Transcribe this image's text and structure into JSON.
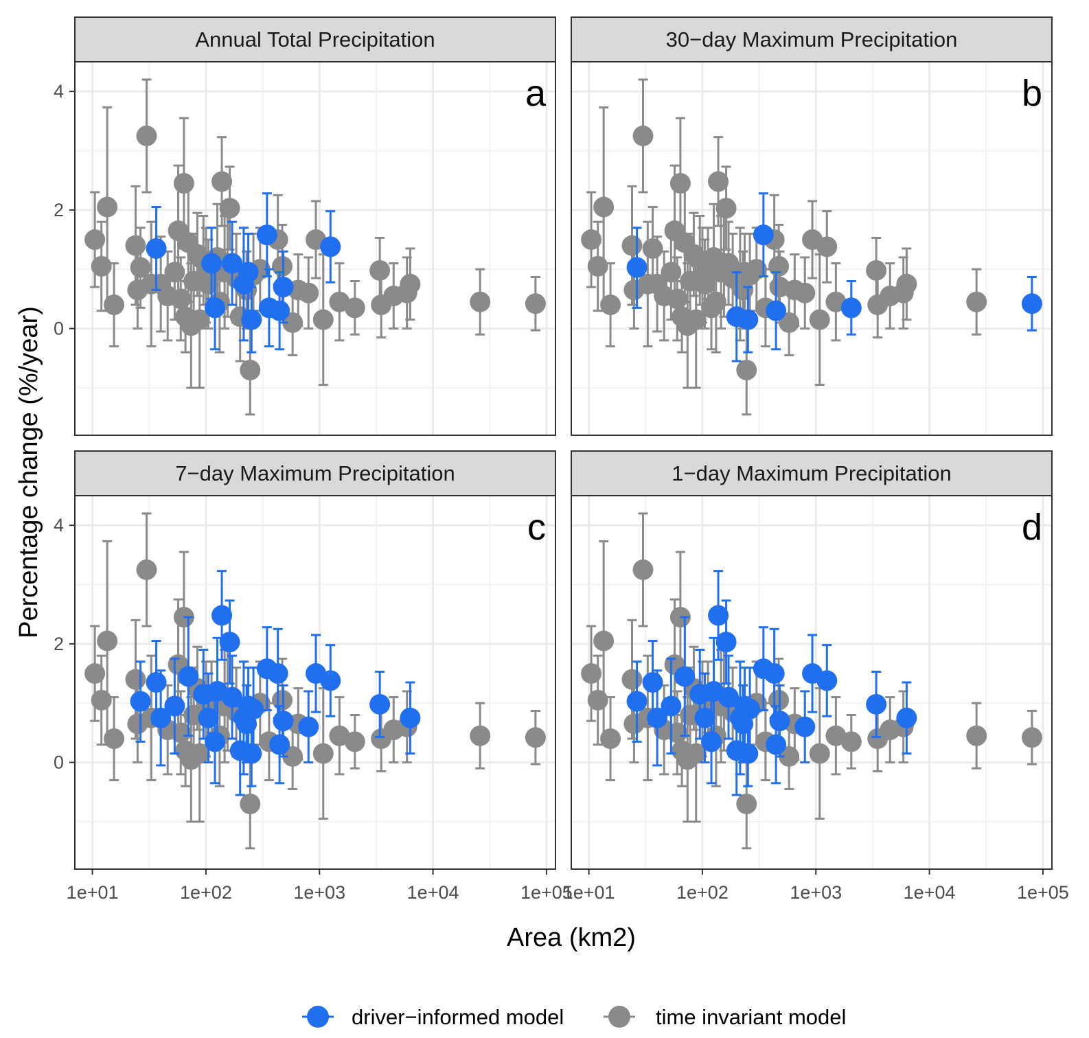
{
  "chart_data": {
    "type": "scatter",
    "xlabel": "Area (km2)",
    "ylabel": "Percentage change (%/year)",
    "x_scale": "log10",
    "xlim": [
      7,
      120000
    ],
    "ylim": [
      -1.8,
      4.5
    ],
    "x_ticks": [
      {
        "value": 10,
        "label": "1e+01"
      },
      {
        "value": 100,
        "label": "1e+02"
      },
      {
        "value": 1000,
        "label": "1e+03"
      },
      {
        "value": 10000,
        "label": "1e+04"
      },
      {
        "value": 100000,
        "label": "1e+05"
      }
    ],
    "y_ticks": [
      {
        "value": 0,
        "label": "0"
      },
      {
        "value": 2,
        "label": "2"
      },
      {
        "value": 4,
        "label": "4"
      }
    ],
    "grid": true,
    "legend_position": "bottom",
    "series_colors": {
      "driver": "#1f6fef",
      "invariant": "#8a8a8a"
    },
    "legend": [
      {
        "key": "driver",
        "label": "driver−informed model"
      },
      {
        "key": "invariant",
        "label": "time invariant model"
      }
    ],
    "stations": [
      {
        "id": 1,
        "area": 10.5,
        "est": 1.5,
        "lo": 0.7,
        "hi": 2.3
      },
      {
        "id": 2,
        "area": 12,
        "est": 1.05,
        "lo": 0.3,
        "hi": 1.8
      },
      {
        "id": 3,
        "area": 13.5,
        "est": 2.05,
        "lo": 0.3,
        "hi": 3.73
      },
      {
        "id": 4,
        "area": 15.5,
        "est": 0.4,
        "lo": -0.3,
        "hi": 1.1
      },
      {
        "id": 5,
        "area": 24,
        "est": 1.4,
        "lo": 0.4,
        "hi": 2.4
      },
      {
        "id": 6,
        "area": 25,
        "est": 0.65,
        "lo": 0.0,
        "hi": 1.3
      },
      {
        "id": 7,
        "area": 26.5,
        "est": 1.03,
        "lo": 0.35,
        "hi": 1.7
      },
      {
        "id": 8,
        "area": 30,
        "est": 3.25,
        "lo": 2.3,
        "hi": 4.2
      },
      {
        "id": 9,
        "area": 33,
        "est": 0.75,
        "lo": -0.3,
        "hi": 1.8
      },
      {
        "id": 10,
        "area": 36.5,
        "est": 1.35,
        "lo": 0.65,
        "hi": 2.05
      },
      {
        "id": 11,
        "area": 40,
        "est": 0.75,
        "lo": -0.05,
        "hi": 1.55
      },
      {
        "id": 12,
        "area": 46,
        "est": 0.55,
        "lo": -0.2,
        "hi": 1.3
      },
      {
        "id": 13,
        "area": 53,
        "est": 0.95,
        "lo": 0.15,
        "hi": 1.75
      },
      {
        "id": 14,
        "area": 57,
        "est": 1.65,
        "lo": 0.55,
        "hi": 2.75
      },
      {
        "id": 15,
        "area": 60,
        "est": 0.5,
        "lo": -0.2,
        "hi": 1.2
      },
      {
        "id": 16,
        "area": 64,
        "est": 2.45,
        "lo": 1.35,
        "hi": 3.55
      },
      {
        "id": 17,
        "area": 66,
        "est": 0.2,
        "lo": -0.4,
        "hi": 0.8
      },
      {
        "id": 18,
        "area": 70,
        "est": 1.45,
        "lo": 0.45,
        "hi": 2.45
      },
      {
        "id": 19,
        "area": 74,
        "est": 0.05,
        "lo": -1.0,
        "hi": 1.1
      },
      {
        "id": 20,
        "area": 78,
        "est": 0.8,
        "lo": 0.0,
        "hi": 1.6
      },
      {
        "id": 21,
        "area": 84,
        "est": 1.25,
        "lo": 0.55,
        "hi": 1.95
      },
      {
        "id": 22,
        "area": 88,
        "est": 0.15,
        "lo": -1.0,
        "hi": 1.3
      },
      {
        "id": 23,
        "area": 95,
        "est": 1.15,
        "lo": 0.4,
        "hi": 1.9
      },
      {
        "id": 24,
        "area": 100,
        "est": 0.9,
        "lo": 0.1,
        "hi": 1.7
      },
      {
        "id": 25,
        "area": 105,
        "est": 0.75,
        "lo": 0.0,
        "hi": 1.5
      },
      {
        "id": 26,
        "area": 112,
        "est": 1.1,
        "lo": 0.5,
        "hi": 1.7
      },
      {
        "id": 27,
        "area": 120,
        "est": 0.35,
        "lo": -0.35,
        "hi": 1.05
      },
      {
        "id": 28,
        "area": 126,
        "est": 1.2,
        "lo": 0.3,
        "hi": 2.1
      },
      {
        "id": 29,
        "area": 132,
        "est": 0.45,
        "lo": -0.4,
        "hi": 1.3
      },
      {
        "id": 30,
        "area": 138,
        "est": 2.48,
        "lo": 1.73,
        "hi": 3.23
      },
      {
        "id": 31,
        "area": 146,
        "est": 0.95,
        "lo": 0.0,
        "hi": 1.9
      },
      {
        "id": 32,
        "area": 155,
        "est": 1.05,
        "lo": 0.2,
        "hi": 1.9
      },
      {
        "id": 33,
        "area": 162,
        "est": 2.03,
        "lo": 1.33,
        "hi": 2.73
      },
      {
        "id": 34,
        "area": 170,
        "est": 1.1,
        "lo": 0.4,
        "hi": 1.8
      },
      {
        "id": 35,
        "area": 185,
        "est": 0.85,
        "lo": 0.1,
        "hi": 1.6
      },
      {
        "id": 36,
        "area": 200,
        "est": 0.2,
        "lo": -0.55,
        "hi": 0.95
      },
      {
        "id": 37,
        "area": 215,
        "est": 0.75,
        "lo": -0.2,
        "hi": 1.7
      },
      {
        "id": 38,
        "area": 228,
        "est": 0.65,
        "lo": 0.0,
        "hi": 1.3
      },
      {
        "id": 39,
        "area": 236,
        "est": 0.95,
        "lo": 0.3,
        "hi": 1.6
      },
      {
        "id": 40,
        "area": 245,
        "est": -0.7,
        "lo": -1.45,
        "hi": 0.05
      },
      {
        "id": 41,
        "area": 252,
        "est": 0.15,
        "lo": -0.4,
        "hi": 0.7
      },
      {
        "id": 42,
        "area": 262,
        "est": 0.9,
        "lo": 0.2,
        "hi": 1.6
      },
      {
        "id": 43,
        "area": 300,
        "est": 1.0,
        "lo": 0.3,
        "hi": 1.7
      },
      {
        "id": 44,
        "area": 345,
        "est": 1.58,
        "lo": 0.88,
        "hi": 2.28
      },
      {
        "id": 45,
        "area": 360,
        "est": 0.35,
        "lo": -0.3,
        "hi": 1.0
      },
      {
        "id": 46,
        "area": 430,
        "est": 1.5,
        "lo": 0.75,
        "hi": 2.25
      },
      {
        "id": 47,
        "area": 445,
        "est": 0.3,
        "lo": -0.35,
        "hi": 0.95
      },
      {
        "id": 48,
        "area": 470,
        "est": 1.05,
        "lo": 0.35,
        "hi": 1.75
      },
      {
        "id": 49,
        "area": 480,
        "est": 0.7,
        "lo": 0.1,
        "hi": 1.3
      },
      {
        "id": 50,
        "area": 580,
        "est": 0.1,
        "lo": -0.45,
        "hi": 0.65
      },
      {
        "id": 51,
        "area": 650,
        "est": 0.65,
        "lo": 0.05,
        "hi": 1.25
      },
      {
        "id": 52,
        "area": 800,
        "est": 0.6,
        "lo": 0.0,
        "hi": 1.2
      },
      {
        "id": 53,
        "area": 930,
        "est": 1.5,
        "lo": 0.85,
        "hi": 2.15
      },
      {
        "id": 54,
        "area": 1080,
        "est": 0.15,
        "lo": -0.95,
        "hi": 1.25
      },
      {
        "id": 55,
        "area": 1250,
        "est": 1.38,
        "lo": 0.78,
        "hi": 1.98
      },
      {
        "id": 56,
        "area": 1500,
        "est": 0.45,
        "lo": -0.2,
        "hi": 1.1
      },
      {
        "id": 57,
        "area": 2050,
        "est": 0.35,
        "lo": -0.1,
        "hi": 0.8
      },
      {
        "id": 58,
        "area": 3400,
        "est": 0.98,
        "lo": 0.43,
        "hi": 1.53
      },
      {
        "id": 59,
        "area": 3500,
        "est": 0.4,
        "lo": -0.15,
        "hi": 0.95
      },
      {
        "id": 60,
        "area": 4500,
        "est": 0.55,
        "lo": 0.0,
        "hi": 1.1
      },
      {
        "id": 61,
        "area": 5900,
        "est": 0.6,
        "lo": 0.0,
        "hi": 1.2
      },
      {
        "id": 62,
        "area": 6300,
        "est": 0.75,
        "lo": 0.15,
        "hi": 1.35
      },
      {
        "id": 63,
        "area": 26000,
        "est": 0.45,
        "lo": -0.1,
        "hi": 1.0
      },
      {
        "id": 64,
        "area": 80000,
        "est": 0.42,
        "lo": -0.03,
        "hi": 0.87
      }
    ],
    "panels": [
      {
        "title": "Annual Total Precipitation",
        "label": "a",
        "driver_ids": [
          10,
          26,
          27,
          34,
          37,
          39,
          41,
          44,
          45,
          47,
          49,
          55
        ]
      },
      {
        "title": "30−day Maximum Precipitation",
        "label": "b",
        "driver_ids": [
          7,
          36,
          41,
          44,
          47,
          57,
          64
        ]
      },
      {
        "title": "7−day Maximum Precipitation",
        "label": "c",
        "driver_ids": [
          7,
          10,
          11,
          13,
          18,
          23,
          25,
          27,
          28,
          30,
          33,
          34,
          36,
          37,
          38,
          39,
          41,
          42,
          44,
          46,
          47,
          49,
          52,
          53,
          55,
          58,
          62
        ]
      },
      {
        "title": "1−day Maximum Precipitation",
        "label": "d",
        "driver_ids": [
          7,
          10,
          11,
          13,
          18,
          23,
          25,
          27,
          28,
          30,
          33,
          34,
          36,
          37,
          38,
          39,
          41,
          42,
          44,
          46,
          47,
          49,
          52,
          53,
          55,
          58,
          62
        ]
      }
    ]
  }
}
